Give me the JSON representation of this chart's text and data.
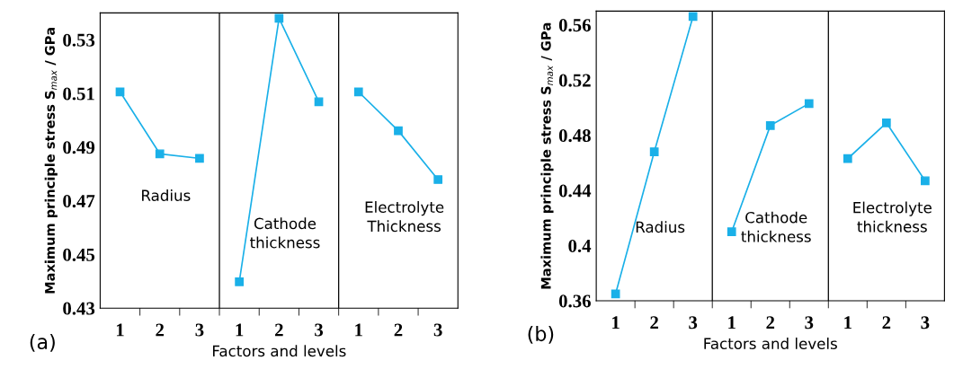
{
  "chart_data": [
    {
      "type": "line",
      "xlabel": "Factors and levels",
      "ylabel": "Maximum principle stress S$_{max}$ / GPa",
      "annotations": [
        "(a)"
      ],
      "marker": "square",
      "legend": false,
      "grid": false,
      "ylim": [
        0.43,
        0.54
      ],
      "yticks": [
        0.43,
        0.45,
        0.47,
        0.49,
        0.51,
        0.53
      ],
      "categories": [
        "1",
        "2",
        "3",
        "1",
        "2",
        "3",
        "1",
        "2",
        "3"
      ],
      "series": [
        {
          "name": "Radius",
          "color": "#1ab0e8",
          "values": [
            0.5106,
            0.4875,
            0.4858,
            null,
            null,
            null,
            null,
            null,
            null
          ]
        },
        {
          "name": "Cathode\nthickness",
          "color": "#1ab0e8",
          "values": [
            null,
            null,
            null,
            0.4398,
            0.538,
            0.5069,
            null,
            null,
            null
          ]
        },
        {
          "name": "Electrolyte\nThickness",
          "color": "#1ab0e8",
          "values": [
            null,
            null,
            null,
            null,
            null,
            null,
            0.5106,
            0.4961,
            0.4779
          ]
        }
      ]
    },
    {
      "type": "line",
      "xlabel": "Factors and levels",
      "ylabel": "Maximum principle stress S$_{max}$ / GPa",
      "annotations": [
        "(b)"
      ],
      "marker": "square",
      "legend": false,
      "grid": false,
      "ylim": [
        0.36,
        0.57
      ],
      "yticks": [
        0.36,
        0.4,
        0.44,
        0.48,
        0.52,
        0.56
      ],
      "categories": [
        "1",
        "2",
        "3",
        "1",
        "2",
        "3",
        "1",
        "2",
        "3"
      ],
      "series": [
        {
          "name": "Radius",
          "color": "#1ab0e8",
          "values": [
            0.365,
            0.468,
            0.566,
            null,
            null,
            null,
            null,
            null,
            null
          ]
        },
        {
          "name": "Cathode\nthickness",
          "color": "#1ab0e8",
          "values": [
            null,
            null,
            null,
            0.41,
            0.487,
            0.503,
            null,
            null,
            null
          ]
        },
        {
          "name": "Electrolyte\nthickness",
          "color": "#1ab0e8",
          "values": [
            null,
            null,
            null,
            null,
            null,
            null,
            0.463,
            0.489,
            0.447
          ]
        }
      ]
    }
  ]
}
